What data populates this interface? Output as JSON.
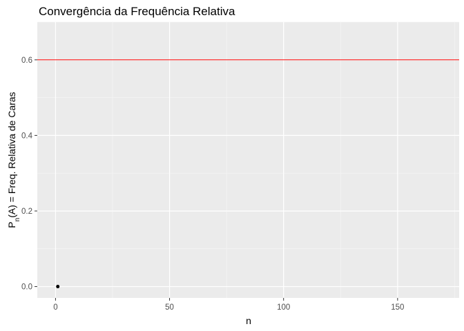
{
  "chart_data": {
    "type": "scatter",
    "title": "Convergência da Frequência Relativa",
    "xlabel": "n",
    "ylabel": {
      "before": "P",
      "subscript": "n",
      "after": "(A) = Freq. Relativa de Caras"
    },
    "xlim": [
      -8,
      177
    ],
    "ylim": [
      -0.03,
      0.7
    ],
    "x_ticks": [
      0,
      50,
      100,
      150
    ],
    "x_tick_labels": [
      "0",
      "50",
      "100",
      "150"
    ],
    "y_ticks": [
      0.0,
      0.2,
      0.4,
      0.6
    ],
    "y_tick_labels": [
      "0.0",
      "0.2",
      "0.4",
      "0.6"
    ],
    "grid": true,
    "series": [
      {
        "x": [
          1
        ],
        "y": [
          0.0
        ],
        "color": "#000000"
      }
    ],
    "reference_line": {
      "y": 0.6,
      "color": "#ff0000"
    },
    "colors": {
      "panel": "#ebebeb",
      "grid_major": "#ffffff",
      "grid_minor": "#f5f5f5"
    }
  }
}
